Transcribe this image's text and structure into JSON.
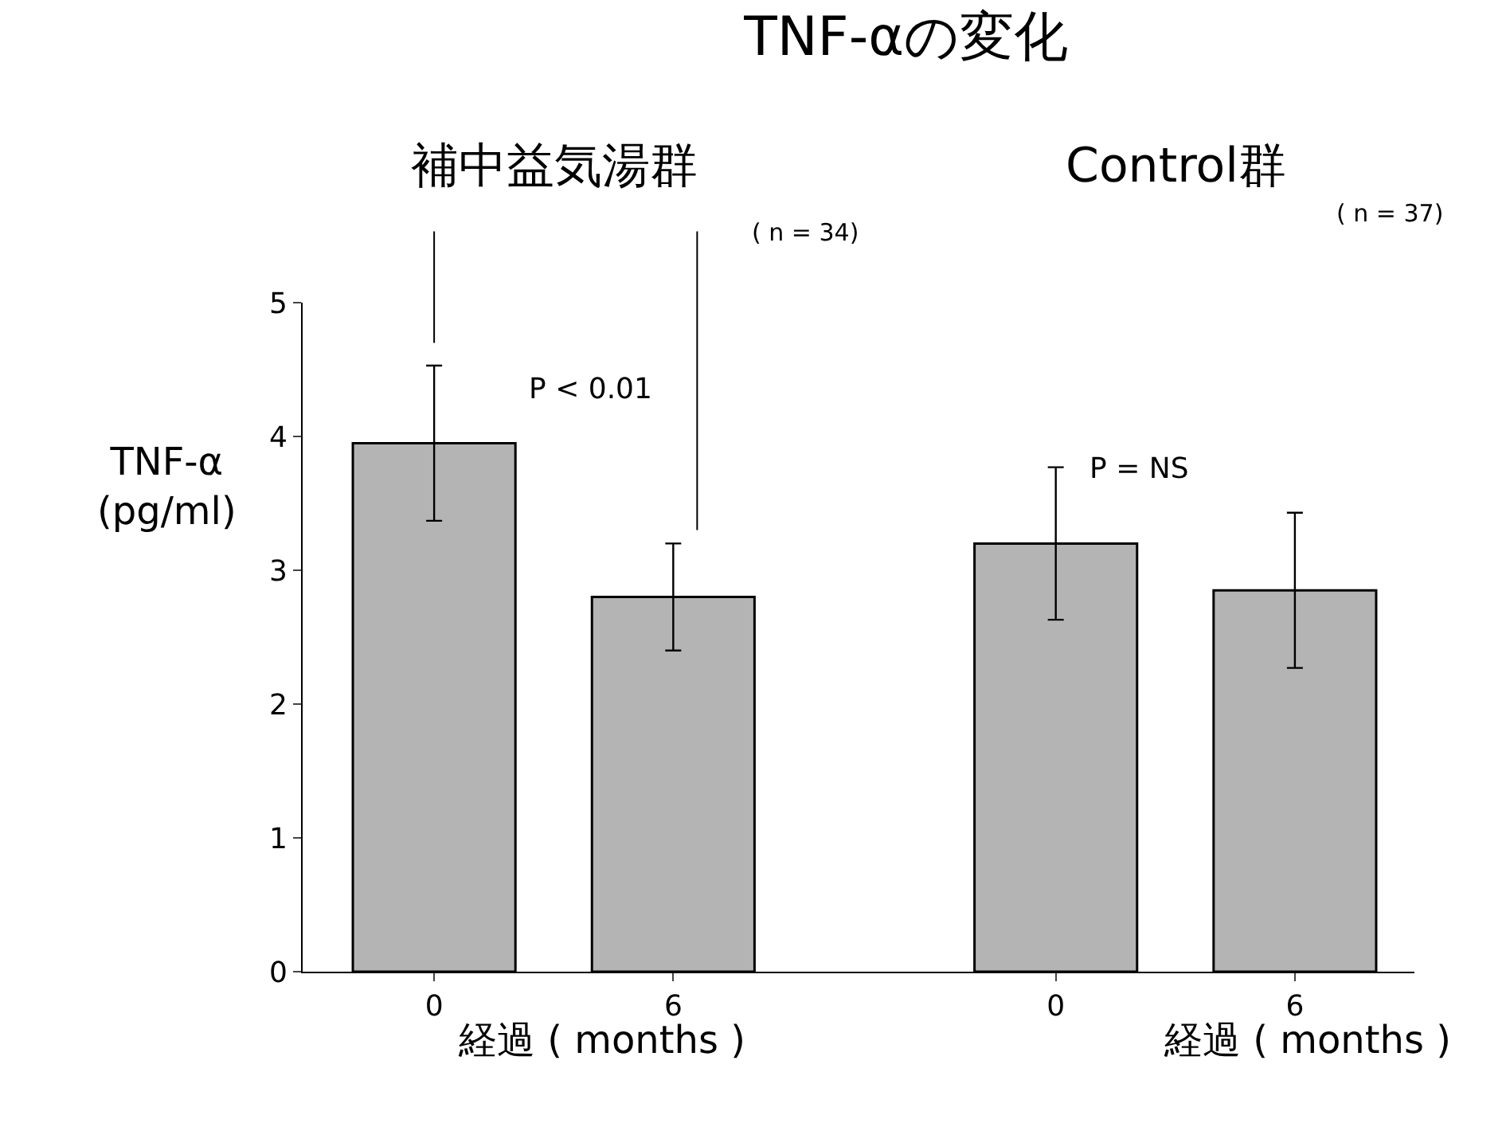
{
  "chart_data": {
    "type": "bar",
    "title": "TNF-αの変化",
    "ylabel": "TNF-α\n(pg/ml)",
    "categories": [
      "0",
      "6",
      "0",
      "6"
    ],
    "series": [
      {
        "color": "#b4b4b4",
        "values": [
          3.95,
          2.8,
          3.2,
          2.85
        ],
        "errors": [
          0.58,
          0.4,
          0.57,
          0.58
        ]
      }
    ],
    "ylim": [
      0,
      5
    ],
    "yticks": [
      0,
      1,
      2,
      3,
      4,
      5
    ],
    "annotations": [
      "補中益気湯群",
      "Control群",
      "( n = 34)",
      "( n = 37)",
      "P < 0.01",
      "P = NS",
      "経過 ( months )",
      "経過 ( months )"
    ]
  }
}
